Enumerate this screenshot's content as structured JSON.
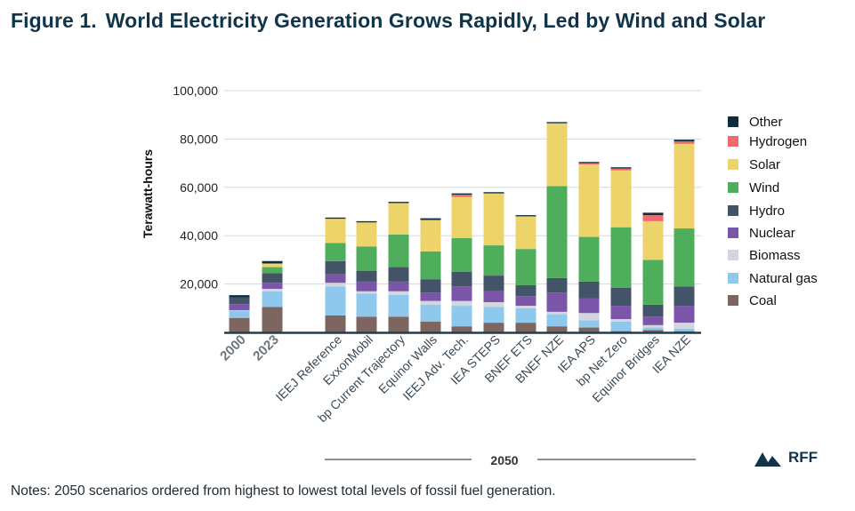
{
  "title": {
    "figure_label": "Figure 1.",
    "text": "World Electricity Generation Grows Rapidly, Led by Wind and Solar"
  },
  "notes": "Notes: 2050 scenarios ordered from highest to lowest total levels of fossil fuel generation.",
  "logo": {
    "text": "RFF",
    "icon": "mountain-icon"
  },
  "colors": {
    "title": "#10344a",
    "Other": "#0f2d3f",
    "Hydrogen": "#ef6b6b",
    "Solar": "#ecd46b",
    "Wind": "#4fae5b",
    "Hydro": "#435468",
    "Nuclear": "#7a55a8",
    "Biomass": "#d3d6dc",
    "Natural gas": "#8ec8ec",
    "Coal": "#7d6660"
  },
  "chart_data": {
    "type": "bar",
    "stacked": true,
    "ylabel": "Terawatt-hours",
    "xlabel": "",
    "ylim": [
      0,
      100000
    ],
    "yticks": [
      "20,000",
      "40,000",
      "60,000",
      "80,000",
      "100,000"
    ],
    "ytick_values": [
      20000,
      40000,
      60000,
      80000,
      100000
    ],
    "grid": true,
    "legend_position": "right",
    "group_label": "2050",
    "categories": [
      "2000",
      "2023",
      "IEEJ Reference",
      "ExxonMobil",
      "bp Current Trajectory",
      "Equinor Walls",
      "IEEJ Adv. Tech.",
      "IEA STEPS",
      "BNEF ETS",
      "BNEF NZE",
      "IEA APS",
      "bp Net Zero",
      "Equinor Bridges",
      "IEA NZE"
    ],
    "series": [
      {
        "name": "Coal",
        "values": [
          6000,
          10500,
          7000,
          6500,
          6500,
          4500,
          2500,
          4000,
          4000,
          2500,
          2000,
          500,
          1000,
          500
        ]
      },
      {
        "name": "Natural gas",
        "values": [
          3000,
          6500,
          12000,
          9500,
          9000,
          7000,
          8500,
          6500,
          6000,
          5000,
          3000,
          4000,
          1000,
          1000
        ]
      },
      {
        "name": "Biomass",
        "values": [
          200,
          1000,
          1500,
          1000,
          1500,
          1500,
          2000,
          2000,
          1000,
          1000,
          3000,
          1000,
          1000,
          2500
        ]
      },
      {
        "name": "Nuclear",
        "values": [
          2500,
          2500,
          3500,
          4000,
          4000,
          3500,
          6000,
          4500,
          4000,
          8000,
          6000,
          5500,
          3500,
          7000
        ]
      },
      {
        "name": "Hydro",
        "values": [
          2700,
          4000,
          5500,
          4500,
          6000,
          5500,
          6000,
          6500,
          4500,
          6000,
          7000,
          7500,
          5000,
          8000
        ]
      },
      {
        "name": "Wind",
        "values": [
          0,
          2500,
          7500,
          10000,
          13500,
          11500,
          14000,
          12500,
          15000,
          38000,
          18500,
          25000,
          18500,
          24000
        ]
      },
      {
        "name": "Solar",
        "values": [
          0,
          1500,
          10000,
          10000,
          13000,
          13000,
          17000,
          21500,
          13500,
          26000,
          30000,
          23500,
          16000,
          35000
        ]
      },
      {
        "name": "Hydrogen",
        "values": [
          0,
          0,
          0,
          0,
          0,
          0,
          1000,
          0,
          0,
          0,
          500,
          800,
          2500,
          1000
        ]
      },
      {
        "name": "Other",
        "values": [
          1000,
          1000,
          500,
          500,
          500,
          700,
          500,
          500,
          500,
          500,
          500,
          500,
          1000,
          700
        ]
      }
    ]
  }
}
